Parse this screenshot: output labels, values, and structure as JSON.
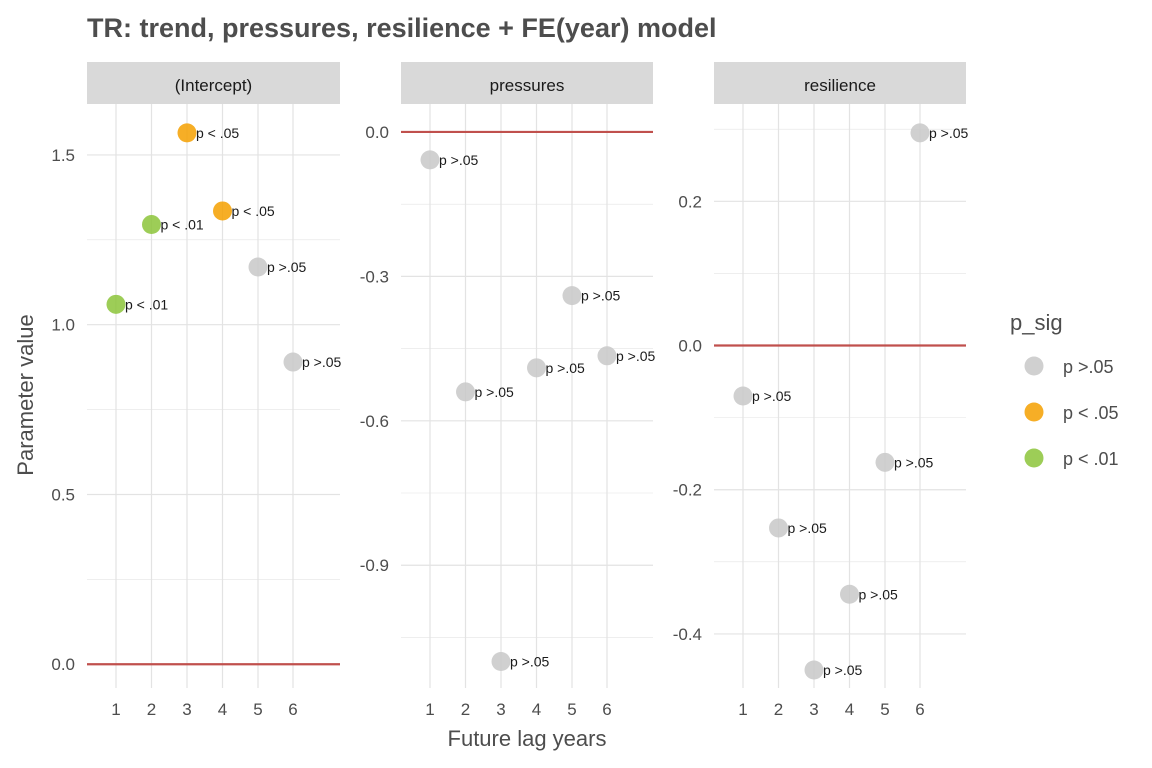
{
  "chart_data": {
    "type": "scatter",
    "title": "TR: trend, pressures, resilience + FE(year) model",
    "xlabel": "Future lag years",
    "ylabel": "Parameter value",
    "x_ticks": [
      1,
      2,
      3,
      4,
      5,
      6
    ],
    "reference_line_y": 0,
    "colors": {
      "p >.05": "#c8c8c8",
      "p < .05": "#f5a000",
      "p < .01": "#8cc43a",
      "reference_line": "#c0504d",
      "grid": "#e3e3e3",
      "strip": "#d9d9d9"
    },
    "legend": {
      "title": "p_sig",
      "position": "right",
      "entries": [
        "p >.05",
        "p < .05",
        "p < .01"
      ]
    },
    "facets": [
      {
        "name": "(Intercept)",
        "ylim": [
          -0.07,
          1.65
        ],
        "y_ticks": [
          0.0,
          0.5,
          1.0,
          1.5
        ],
        "y_tick_labels": [
          "0.0",
          "0.5",
          "1.0",
          "1.5"
        ],
        "points": [
          {
            "x": 1,
            "y": 1.06,
            "sig": "p < .01",
            "label": "p < .01"
          },
          {
            "x": 2,
            "y": 1.295,
            "sig": "p < .01",
            "label": "p < .01"
          },
          {
            "x": 3,
            "y": 1.565,
            "sig": "p < .05",
            "label": "p < .05"
          },
          {
            "x": 4,
            "y": 1.335,
            "sig": "p < .05",
            "label": "p < .05"
          },
          {
            "x": 5,
            "y": 1.17,
            "sig": "p >.05",
            "label": "p >.05"
          },
          {
            "x": 6,
            "y": 0.89,
            "sig": "p >.05",
            "label": "p >.05"
          }
        ]
      },
      {
        "name": "pressures",
        "ylim": [
          -1.155,
          0.058
        ],
        "y_ticks": [
          0.0,
          -0.3,
          -0.6,
          -0.9
        ],
        "y_tick_labels": [
          "0.0",
          "-0.3",
          "-0.6",
          "-0.9"
        ],
        "points": [
          {
            "x": 1,
            "y": -0.058,
            "sig": "p >.05",
            "label": "p >.05"
          },
          {
            "x": 2,
            "y": -0.54,
            "sig": "p >.05",
            "label": "p >.05"
          },
          {
            "x": 3,
            "y": -1.1,
            "sig": "p >.05",
            "label": "p >.05"
          },
          {
            "x": 4,
            "y": -0.49,
            "sig": "p >.05",
            "label": "p >.05"
          },
          {
            "x": 5,
            "y": -0.34,
            "sig": "p >.05",
            "label": "p >.05"
          },
          {
            "x": 6,
            "y": -0.465,
            "sig": "p >.05",
            "label": "p >.05"
          }
        ]
      },
      {
        "name": "resilience",
        "ylim": [
          -0.475,
          0.335
        ],
        "y_ticks": [
          0.2,
          0.0,
          -0.2,
          -0.4
        ],
        "y_tick_labels": [
          "0.2",
          "0.0",
          "-0.2",
          "-0.4"
        ],
        "points": [
          {
            "x": 1,
            "y": -0.07,
            "sig": "p >.05",
            "label": "p >.05"
          },
          {
            "x": 2,
            "y": -0.253,
            "sig": "p >.05",
            "label": "p >.05"
          },
          {
            "x": 3,
            "y": -0.45,
            "sig": "p >.05",
            "label": "p >.05"
          },
          {
            "x": 4,
            "y": -0.345,
            "sig": "p >.05",
            "label": "p >.05"
          },
          {
            "x": 5,
            "y": -0.162,
            "sig": "p >.05",
            "label": "p >.05"
          },
          {
            "x": 6,
            "y": 0.295,
            "sig": "p >.05",
            "label": "p >.05"
          }
        ]
      }
    ]
  }
}
